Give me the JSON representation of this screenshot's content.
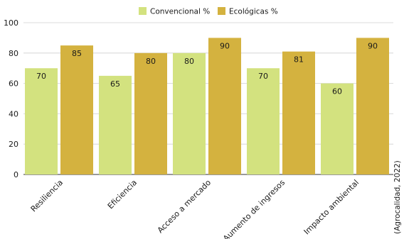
{
  "chart_data": {
    "type": "bar",
    "categories": [
      "Resiliencia",
      "Eficiencia",
      "Acceso a mercado",
      "Aumento de ingresos",
      "Impacto ambiental"
    ],
    "series": [
      {
        "name": "Convencional %",
        "color": "#d3e27f",
        "values": [
          70,
          65,
          80,
          70,
          60
        ]
      },
      {
        "name": "Ecológicas %",
        "color": "#d4b23f",
        "values": [
          85,
          80,
          90,
          81,
          90
        ]
      }
    ],
    "ylim": [
      0,
      100
    ],
    "yticks": [
      0,
      20,
      40,
      60,
      80,
      100
    ],
    "grid": true,
    "legend_position": "top-center",
    "source_note": "(Agrocalidad, 2022)"
  }
}
